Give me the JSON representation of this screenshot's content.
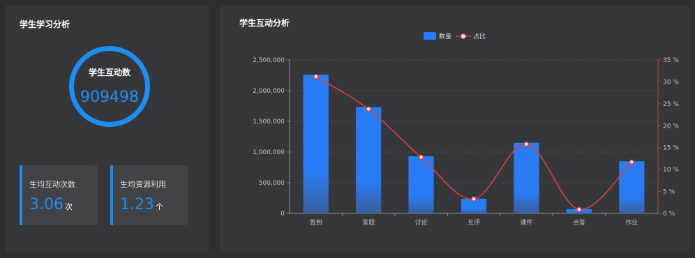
{
  "left_panel": {
    "title": "学生学习分析",
    "ring": {
      "label": "学生互动数",
      "value": "909498"
    },
    "cards": [
      {
        "label": "生均互动次数",
        "value": "3.06",
        "unit": "次"
      },
      {
        "label": "生均资源利用",
        "value": "1.23",
        "unit": "个"
      }
    ]
  },
  "right_panel": {
    "title": "学生互动分析"
  },
  "colors": {
    "accent": "#1f8ef1",
    "bar": "#2a7cf6",
    "line": "#d9403f"
  },
  "chart_data": {
    "type": "bar",
    "categories": [
      "签到",
      "答题",
      "讨论",
      "互评",
      "课件",
      "点答",
      "作业"
    ],
    "series": [
      {
        "name": "数量",
        "type": "bar",
        "axis": "left",
        "values": [
          2260000,
          1730000,
          930000,
          240000,
          1150000,
          70000,
          850000
        ]
      },
      {
        "name": "占比",
        "type": "line",
        "axis": "right",
        "smooth": true,
        "values": [
          31.2,
          23.8,
          12.8,
          3.3,
          15.8,
          0.9,
          11.7
        ]
      }
    ],
    "y_left": {
      "min": 0,
      "max": 2500000,
      "ticks": [
        "0",
        "500,000",
        "1,000,000",
        "1,500,000",
        "2,000,000",
        "2,500,000"
      ]
    },
    "y_right": {
      "min": 0,
      "max": 35,
      "ticks": [
        "0 %",
        "5 %",
        "10 %",
        "15 %",
        "20 %",
        "25 %",
        "30 %",
        "35 %"
      ]
    },
    "legend_position": "top-center",
    "grid": true
  }
}
